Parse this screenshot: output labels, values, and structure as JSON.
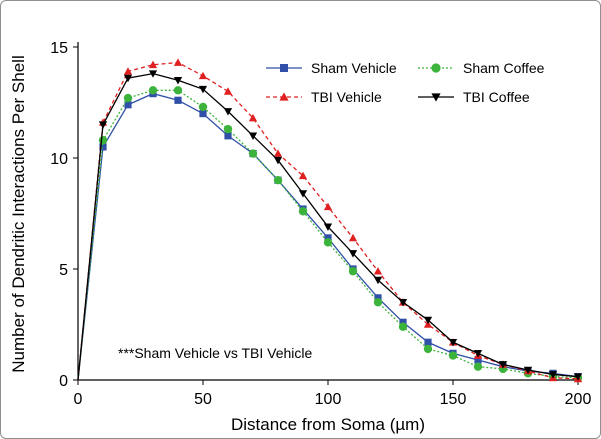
{
  "chart_data": {
    "type": "line",
    "title": "",
    "xlabel": "Distance from Soma (µm)",
    "ylabel": "Number of Dendritic Interactions Per Shell",
    "xlim": [
      0,
      200
    ],
    "ylim": [
      0,
      15
    ],
    "x_ticks": [
      "0",
      "50",
      "100",
      "150",
      "200"
    ],
    "y_ticks": [
      "0",
      "5",
      "10",
      "15"
    ],
    "x": [
      0,
      10,
      20,
      30,
      40,
      50,
      60,
      70,
      80,
      90,
      100,
      110,
      120,
      130,
      140,
      150,
      160,
      170,
      180,
      190,
      200
    ],
    "series": [
      {
        "name": "Sham Vehicle",
        "color": "#2f4fa8",
        "marker": "square",
        "dash": "solid",
        "values": [
          0,
          10.5,
          12.4,
          12.9,
          12.6,
          12.0,
          11.0,
          10.2,
          9.0,
          7.7,
          6.4,
          5.0,
          3.7,
          2.6,
          1.7,
          1.2,
          0.9,
          0.6,
          0.4,
          0.3,
          0.15
        ]
      },
      {
        "name": "Sham Coffee",
        "color": "#3cb43c",
        "marker": "circle",
        "dash": "dotted",
        "values": [
          0,
          10.8,
          12.7,
          13.05,
          13.05,
          12.3,
          11.3,
          10.2,
          9.0,
          7.6,
          6.2,
          4.9,
          3.5,
          2.4,
          1.4,
          1.1,
          0.6,
          0.5,
          0.3,
          0.15,
          0.1
        ]
      },
      {
        "name": "TBI Vehicle",
        "color": "#e02020",
        "marker": "triangle-up",
        "dash": "dashed",
        "values": [
          0,
          11.6,
          13.9,
          14.2,
          14.3,
          13.7,
          13.0,
          11.8,
          10.2,
          9.2,
          7.8,
          6.4,
          4.9,
          3.5,
          2.5,
          1.7,
          1.1,
          0.7,
          0.4,
          0.1,
          0.05
        ]
      },
      {
        "name": "TBI Coffee",
        "color": "#000000",
        "marker": "triangle-down",
        "dash": "solid",
        "values": [
          0,
          11.5,
          13.6,
          13.8,
          13.5,
          13.1,
          12.1,
          11.0,
          9.9,
          8.4,
          6.9,
          5.7,
          4.5,
          3.5,
          2.7,
          1.7,
          1.2,
          0.7,
          0.45,
          0.25,
          0.15
        ]
      }
    ],
    "legend": {
      "placement": "top-right",
      "order": [
        "Sham Vehicle",
        "Sham Coffee",
        "TBI Vehicle",
        "TBI Coffee"
      ]
    },
    "annotation": "***Sham Vehicle vs TBI Vehicle",
    "grid": false
  }
}
